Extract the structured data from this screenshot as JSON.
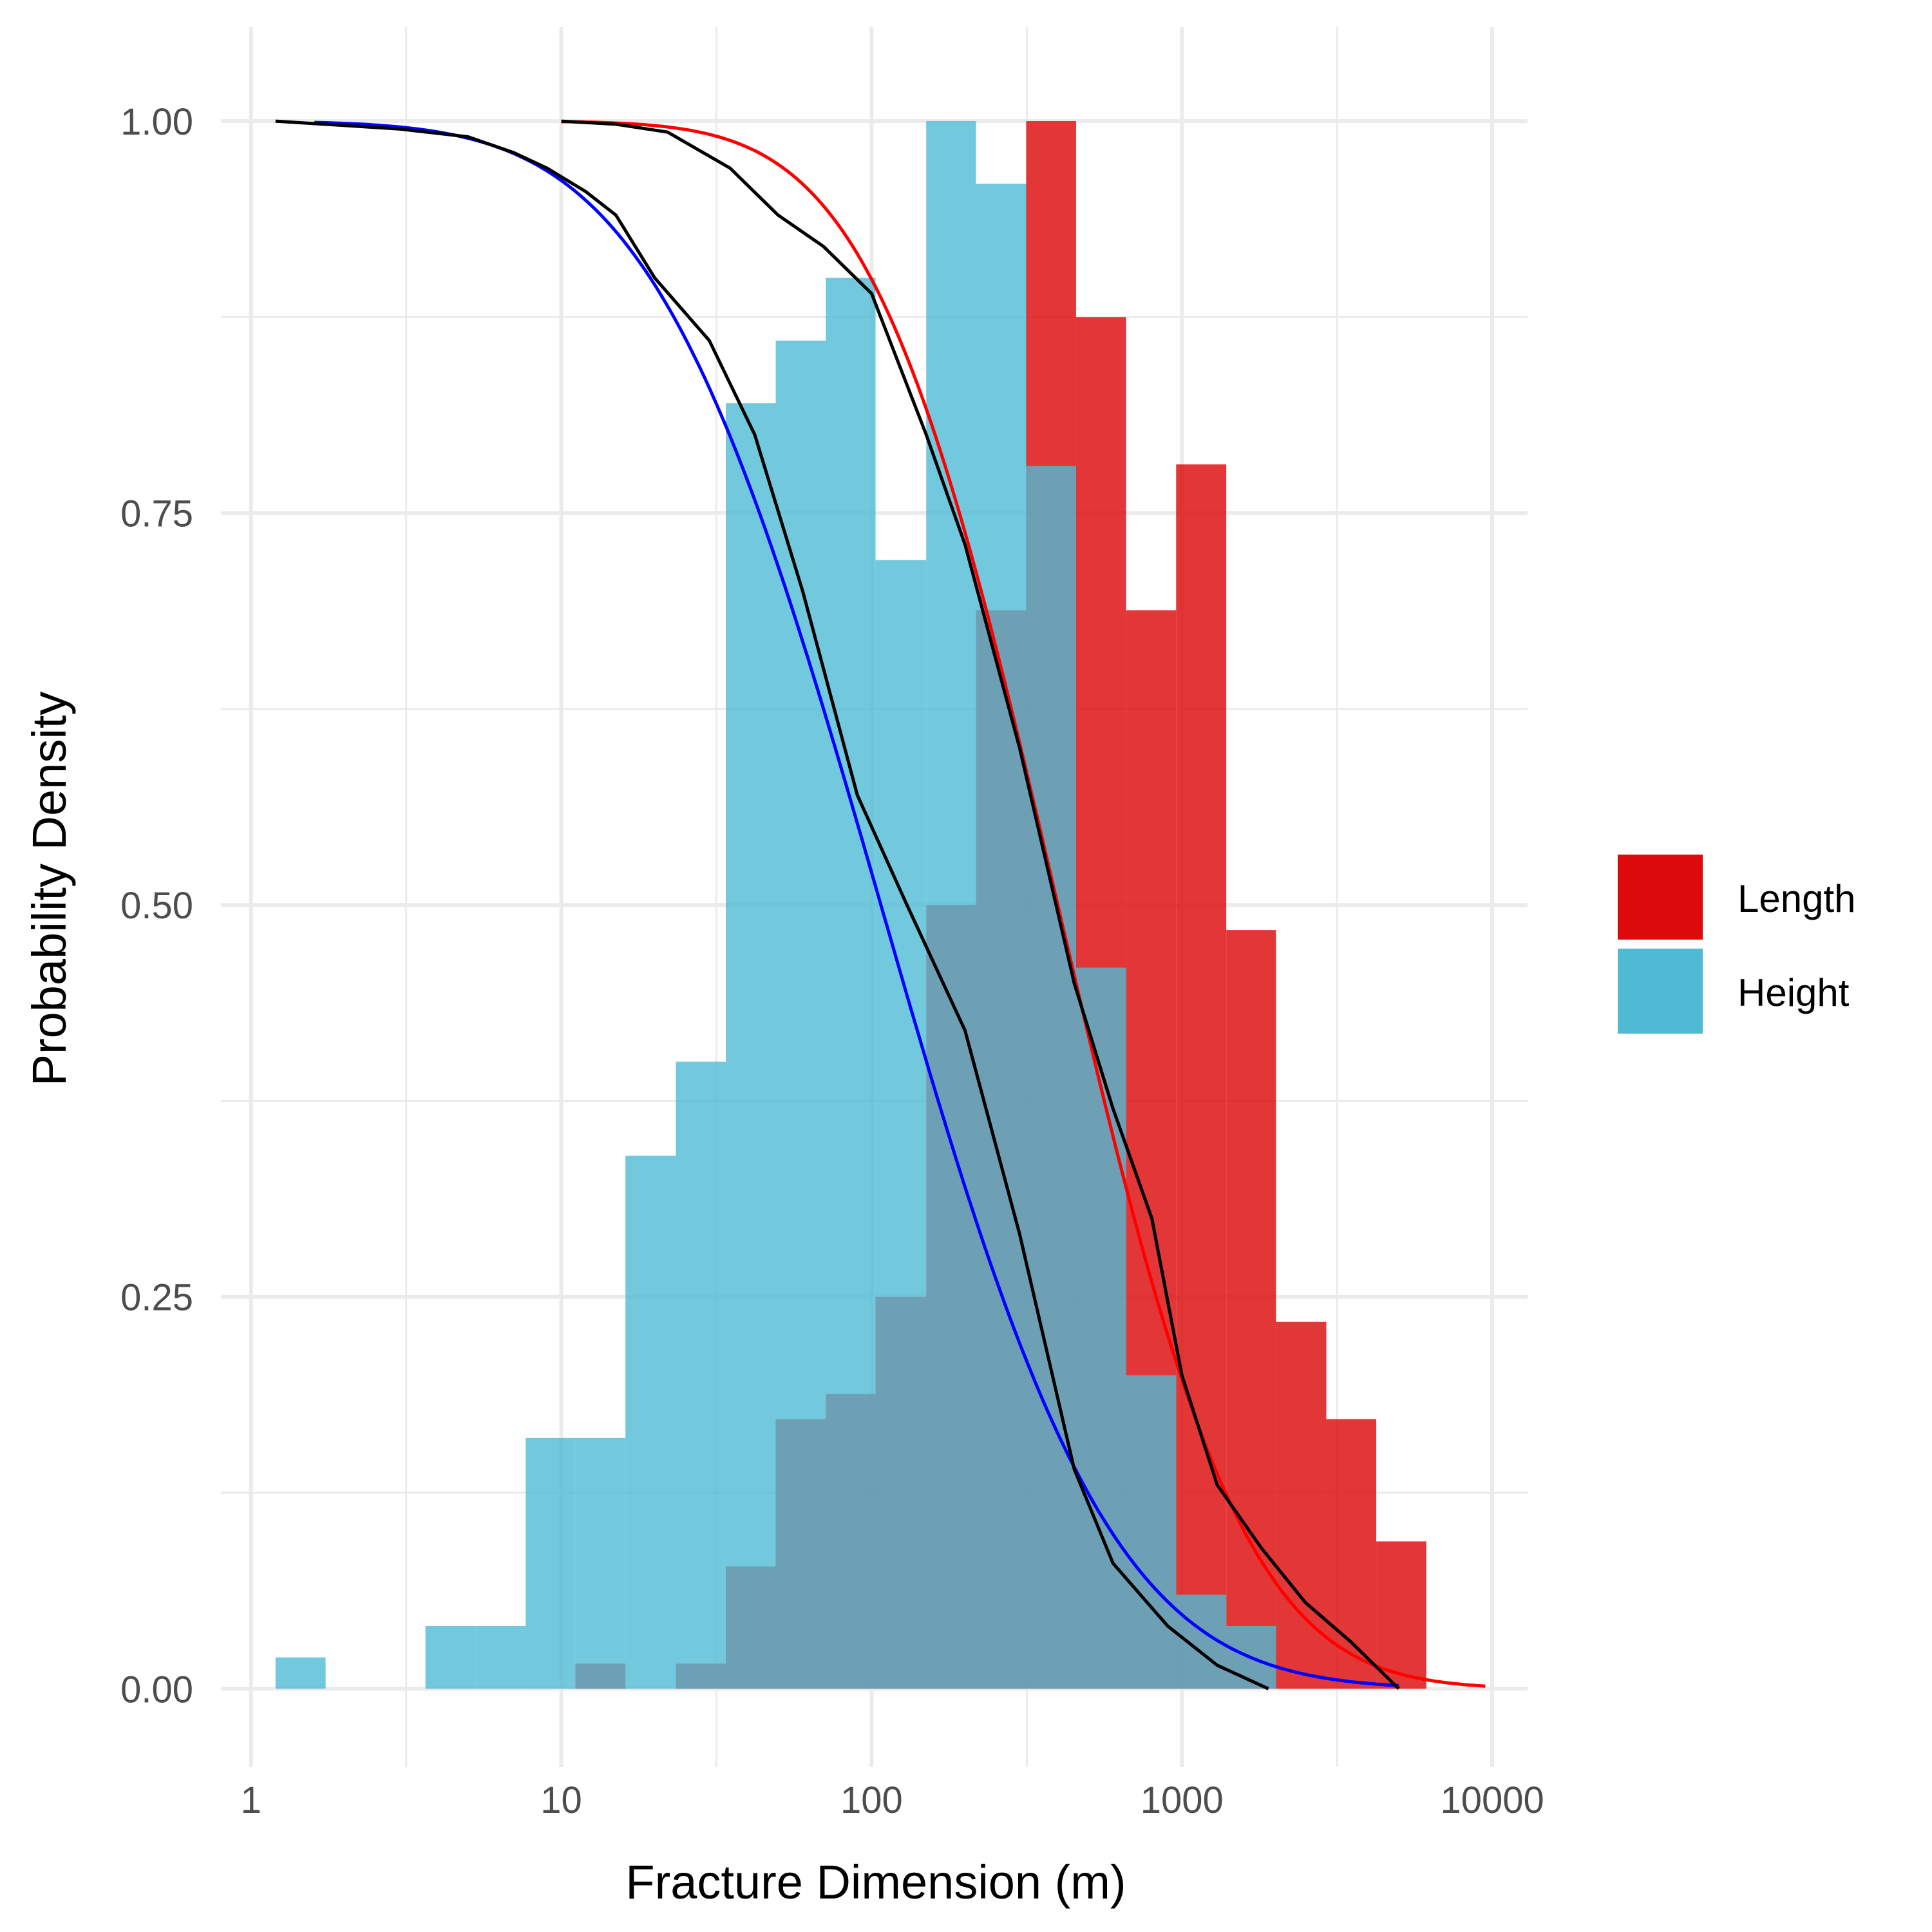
{
  "chart_data": {
    "type": "bar",
    "xlabel": "Fracture Dimension (m)",
    "ylabel": "Probability Density",
    "x_scale": "log10",
    "xlim": [
      0.8,
      13000
    ],
    "ylim": [
      -0.05,
      1.06
    ],
    "x_ticks": [
      1,
      10,
      100,
      1000,
      10000
    ],
    "x_tick_labels": [
      "1",
      "10",
      "100",
      "1000",
      "10000"
    ],
    "y_ticks": [
      0,
      0.25,
      0.5,
      0.75,
      1
    ],
    "y_tick_labels": [
      "0.00",
      "0.25",
      "0.50",
      "0.75",
      "1.00"
    ],
    "grid": true,
    "legend_position": "right",
    "bin_edges": [
      1.2,
      1.74,
      2.52,
      3.65,
      5.3,
      7.68,
      11.1,
      16.1,
      23.4,
      33.9,
      49.1,
      71.2,
      103,
      150,
      217,
      315,
      456,
      661,
      958,
      1390,
      2010,
      2920,
      4230,
      6130
    ],
    "series": [
      {
        "name": "Length",
        "color": "#dd0a0b",
        "values": [
          0,
          0,
          0,
          0,
          0,
          0,
          0.016,
          0,
          0.016,
          0.078,
          0.172,
          0.188,
          0.25,
          0.5,
          0.688,
          1.0,
          0.875,
          0.688,
          0.781,
          0.484,
          0.234,
          0.172,
          0.094
        ]
      },
      {
        "name": "Height",
        "color": "#4fbad4",
        "values": [
          0.02,
          0,
          0,
          0.04,
          0.04,
          0.16,
          0.16,
          0.34,
          0.4,
          0.82,
          0.86,
          0.9,
          0.72,
          1.0,
          0.96,
          0.78,
          0.46,
          0.2,
          0.06,
          0.04,
          0,
          0,
          0
        ]
      }
    ],
    "curves": [
      {
        "series": "Height",
        "kind": "fitted",
        "color": "#0000ff",
        "mu_log10": 2.03,
        "sigma_log10": 0.58,
        "x_range": [
          1.6,
          5000
        ]
      },
      {
        "series": "Length",
        "kind": "fitted",
        "color": "#ff0000",
        "mu_log10": 2.6,
        "sigma_log10": 0.47,
        "x_range": [
          10,
          9500
        ]
      },
      {
        "series": "Height",
        "kind": "empirical",
        "color": "#000000",
        "x": [
          1.2,
          3,
          5,
          7,
          9,
          12,
          15,
          20,
          30,
          42,
          60,
          90,
          130,
          200,
          300,
          450,
          600,
          900,
          1300,
          1900
        ],
        "y": [
          1.0,
          0.995,
          0.99,
          0.98,
          0.97,
          0.955,
          0.94,
          0.9,
          0.86,
          0.8,
          0.7,
          0.57,
          0.5,
          0.42,
          0.29,
          0.14,
          0.08,
          0.04,
          0.015,
          0.0
        ]
      },
      {
        "series": "Length",
        "kind": "empirical",
        "color": "#000000",
        "x": [
          10,
          15,
          22,
          35,
          50,
          70,
          100,
          150,
          200,
          300,
          450,
          600,
          800,
          1000,
          1300,
          1800,
          2500,
          3500,
          5000
        ],
        "y": [
          1.0,
          0.998,
          0.993,
          0.97,
          0.94,
          0.92,
          0.89,
          0.8,
          0.73,
          0.6,
          0.45,
          0.37,
          0.3,
          0.2,
          0.13,
          0.09,
          0.055,
          0.03,
          0.0
        ]
      }
    ]
  }
}
